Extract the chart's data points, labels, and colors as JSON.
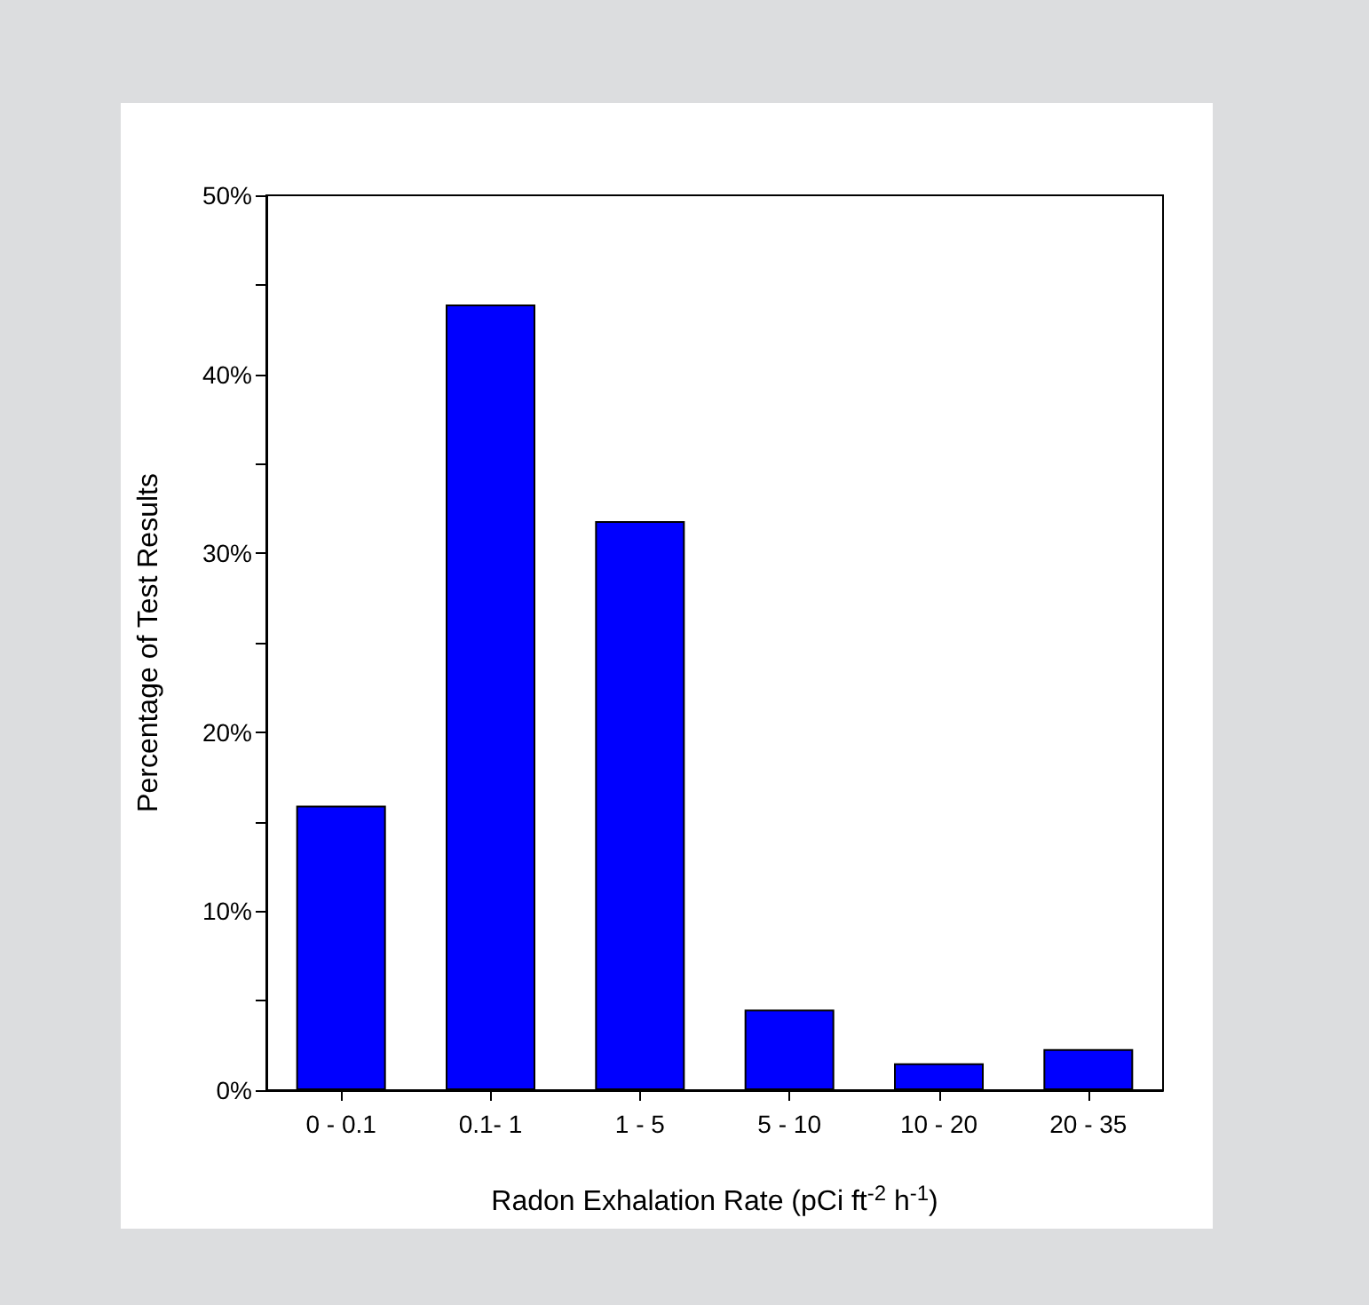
{
  "chart_data": {
    "type": "bar",
    "xlabel": "Radon Exhalation Rate (pCi ft$^{-2}$ h$^{-1}$)",
    "ylabel": "Percentage of Test Results",
    "categories": [
      "0 - 0.1",
      "0.1- 1",
      "1 - 5",
      "5 - 10",
      "10 - 20",
      "20 - 35"
    ],
    "values": [
      15.9,
      43.9,
      31.8,
      4.5,
      1.5,
      2.3
    ],
    "color": "#0000ff",
    "ylim": [
      0,
      50
    ],
    "yticks": [
      {
        "value": 0,
        "label": "0%"
      },
      {
        "value": 5,
        "label": null
      },
      {
        "value": 10,
        "label": "10%"
      },
      {
        "value": 15,
        "label": null
      },
      {
        "value": 20,
        "label": "20%"
      },
      {
        "value": 25,
        "label": null
      },
      {
        "value": 30,
        "label": "30%"
      },
      {
        "value": 35,
        "label": null
      },
      {
        "value": 40,
        "label": "40%"
      },
      {
        "value": 45,
        "label": null
      },
      {
        "value": 50,
        "label": "50%"
      }
    ]
  }
}
